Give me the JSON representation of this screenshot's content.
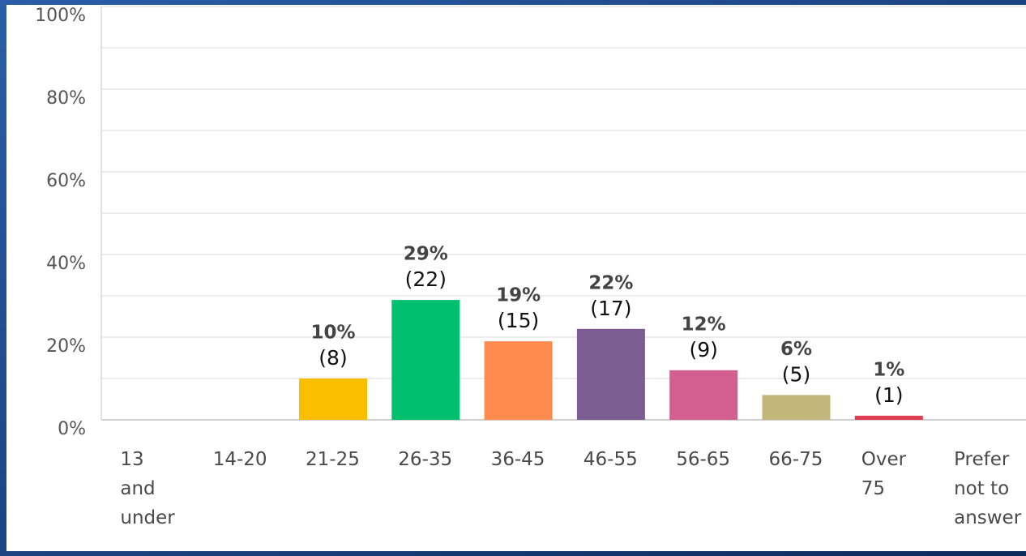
{
  "chart_data": {
    "type": "bar",
    "categories": [
      "13 and under",
      "14-20",
      "21-25",
      "26-35",
      "36-45",
      "46-55",
      "56-65",
      "66-75",
      "Over 75",
      "Prefer not to answer"
    ],
    "values": [
      0,
      0,
      10,
      29,
      19,
      22,
      12,
      6,
      1,
      0
    ],
    "value_labels": [
      null,
      null,
      "10%",
      "29%",
      "19%",
      "22%",
      "12%",
      "6%",
      "1%",
      null
    ],
    "counts": [
      null,
      null,
      8,
      22,
      15,
      17,
      9,
      5,
      1,
      null
    ],
    "count_labels": [
      null,
      null,
      "(8)",
      "(22)",
      "(15)",
      "(17)",
      "(9)",
      "(5)",
      "(1)",
      null
    ],
    "colors": [
      null,
      null,
      "#f9be00",
      "#00bf6f",
      "#ff8b4f",
      "#7d5c91",
      "#d25f90",
      "#c4b57b",
      "#e03d52",
      null
    ],
    "ylim": [
      0,
      100
    ],
    "yticks": [
      {
        "value": 0,
        "label": "0%"
      },
      {
        "value": 20,
        "label": "20%"
      },
      {
        "value": 40,
        "label": "40%"
      },
      {
        "value": 60,
        "label": "60%"
      },
      {
        "value": 80,
        "label": "80%"
      },
      {
        "value": 100,
        "label": "100%"
      }
    ],
    "minor_yticks": [
      10,
      30,
      50,
      70,
      90
    ],
    "grid": true
  }
}
